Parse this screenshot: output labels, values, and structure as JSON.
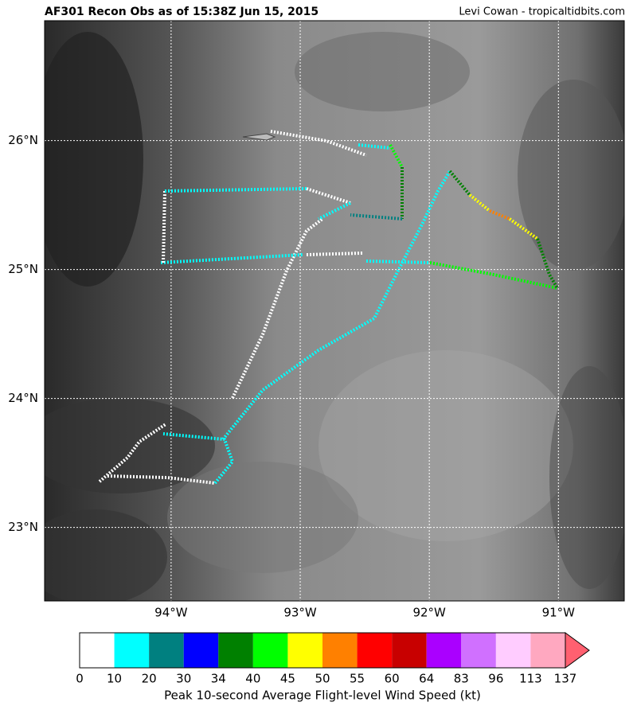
{
  "title": "AF301 Recon Obs as of 15:38Z Jun 15, 2015",
  "credit": "Levi Cowan - tropicaltidbits.com",
  "map": {
    "xlim": [
      -94.98,
      -90.49
    ],
    "ylim": [
      22.43,
      26.93
    ],
    "xticks": [
      {
        "value": -94,
        "label": "94°W"
      },
      {
        "value": -93,
        "label": "93°W"
      },
      {
        "value": -92,
        "label": "92°W"
      },
      {
        "value": -91,
        "label": "91°W"
      }
    ],
    "yticks": [
      {
        "value": 23,
        "label": "23°N"
      },
      {
        "value": 24,
        "label": "24°N"
      },
      {
        "value": 25,
        "label": "25°N"
      },
      {
        "value": 26,
        "label": "26°N"
      }
    ],
    "grid": true
  },
  "colorbar": {
    "label": "Peak 10-second Average Flight-level Wind Speed (kt)",
    "bounds": [
      0,
      10,
      20,
      30,
      34,
      40,
      45,
      50,
      55,
      60,
      64,
      83,
      96,
      113,
      137
    ],
    "colors": [
      "#ffffff",
      "#00ffff",
      "#008080",
      "#0000ff",
      "#008000",
      "#00ff00",
      "#ffff00",
      "#ff8000",
      "#ff0000",
      "#c80000",
      "#aa00ff",
      "#d070ff",
      "#ffccff",
      "#ffa8c0"
    ],
    "extend_color": "#ff6070"
  }
}
